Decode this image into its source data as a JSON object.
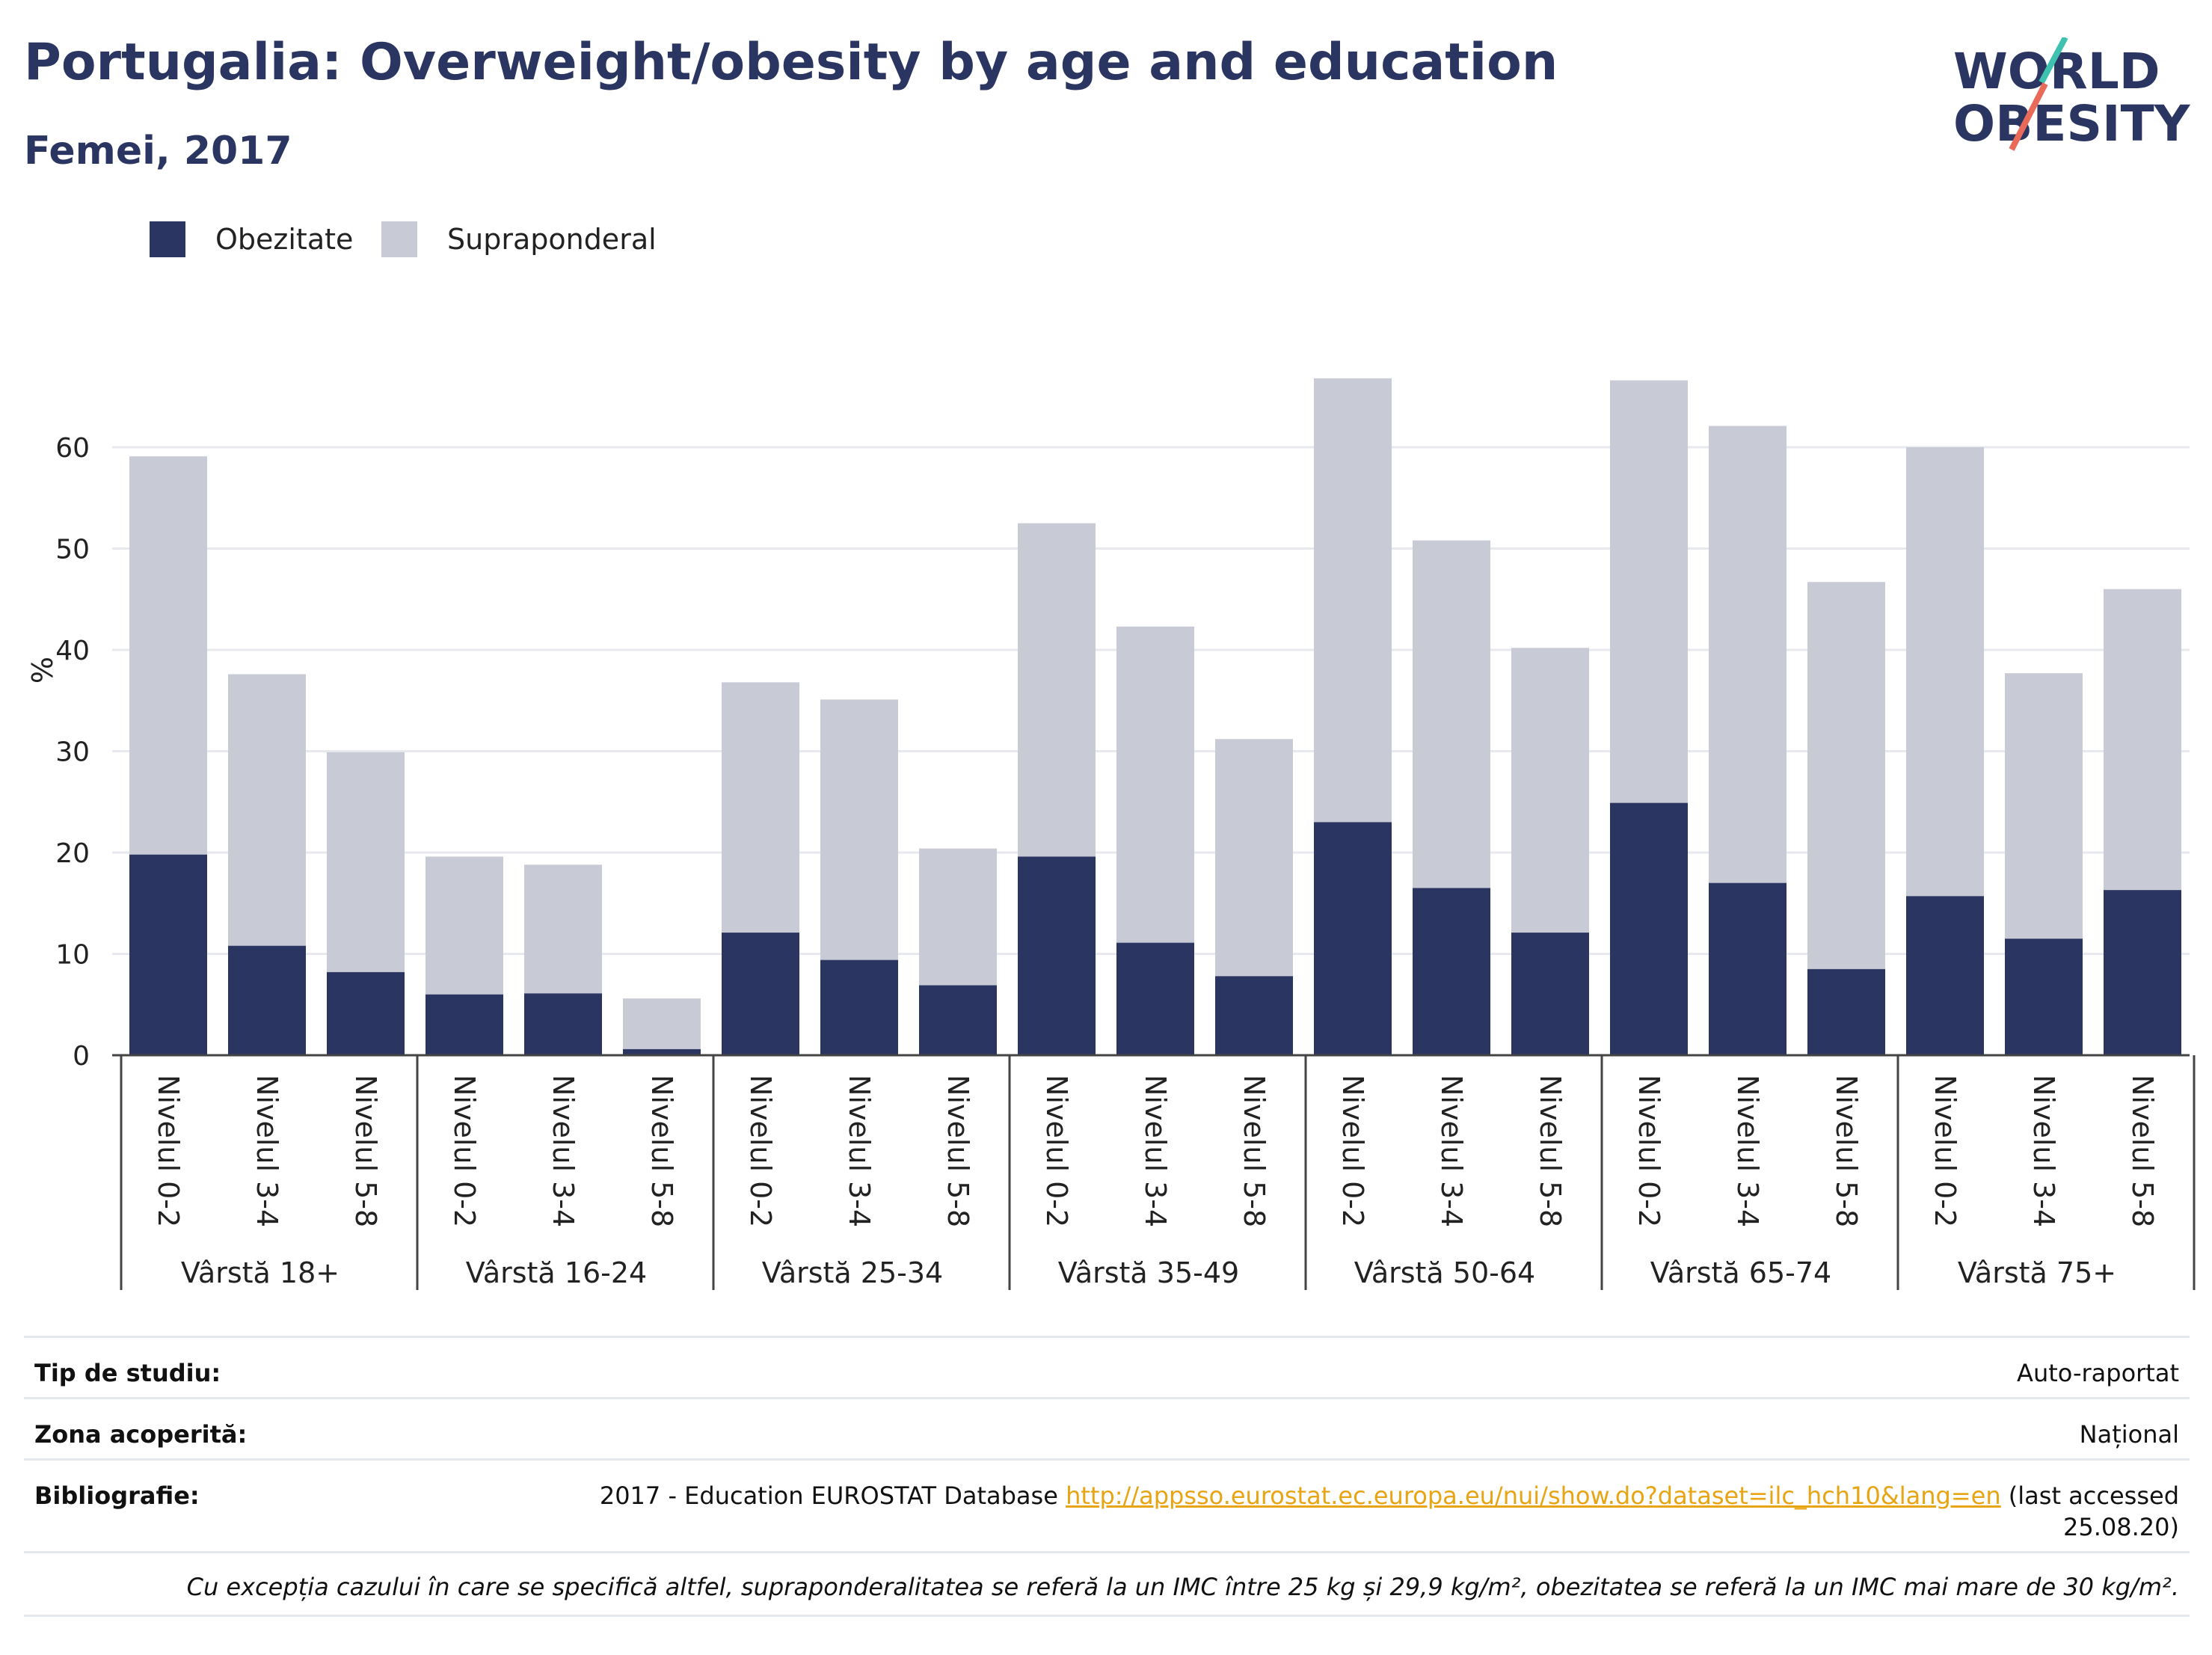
{
  "header": {
    "title": "Portugalia: Overweight/obesity by age and education",
    "subtitle": "Femei, 2017"
  },
  "logo": {
    "line1": "WORLD",
    "line2": "OBESITY"
  },
  "legend": [
    {
      "label": "Obezitate",
      "color": "#2b3561"
    },
    {
      "label": "Supraponderal",
      "color": "#c8cad6"
    }
  ],
  "chart_data": {
    "type": "bar",
    "stacked": true,
    "ylabel": "%",
    "ylim": [
      0,
      70
    ],
    "yticks": [
      0,
      10,
      20,
      30,
      40,
      50,
      60
    ],
    "grid": true,
    "legend_position": "top-left",
    "categories": [
      "Nivelul 0-2",
      "Nivelul 3-4",
      "Nivelul 5-8"
    ],
    "groups": [
      {
        "label": "Vârstă 18+",
        "obezitate": [
          19.8,
          10.8,
          8.2
        ],
        "supraponderal": [
          39.3,
          26.8,
          21.7
        ]
      },
      {
        "label": "Vârstă 16-24",
        "obezitate": [
          6.0,
          6.1,
          0.6
        ],
        "supraponderal": [
          13.6,
          12.7,
          5.0
        ]
      },
      {
        "label": "Vârstă 25-34",
        "obezitate": [
          12.1,
          9.4,
          6.9
        ],
        "supraponderal": [
          24.7,
          25.7,
          13.5
        ]
      },
      {
        "label": "Vârstă 35-49",
        "obezitate": [
          19.6,
          11.1,
          7.8
        ],
        "supraponderal": [
          32.9,
          31.2,
          23.4
        ]
      },
      {
        "label": "Vârstă 50-64",
        "obezitate": [
          23.0,
          16.5,
          12.1
        ],
        "supraponderal": [
          43.8,
          34.3,
          28.1
        ]
      },
      {
        "label": "Vârstă 65-74",
        "obezitate": [
          24.9,
          17.0,
          8.5
        ],
        "supraponderal": [
          41.7,
          45.1,
          38.2
        ]
      },
      {
        "label": "Vârstă 75+",
        "obezitate": [
          15.7,
          11.5,
          16.3
        ],
        "supraponderal": [
          44.3,
          26.2,
          29.7
        ]
      }
    ],
    "series_colors": {
      "obezitate": "#2b3561",
      "supraponderal": "#c8cad6"
    }
  },
  "info": {
    "study_type_label": "Tip de studiu:",
    "study_type_value": "Auto-raportat",
    "coverage_label": "Zona acoperită:",
    "coverage_value": "Național",
    "bibliography_label": "Bibliografie:",
    "bibliography_text": "2017 - Education EUROSTAT Database ",
    "bibliography_link": "http://appsso.eurostat.ec.europa.eu/nui/show.do?dataset=ilc_hch10&lang=en",
    "bibliography_suffix": " (last accessed 25.08.20)",
    "footnote": "Cu excepția cazului în care se specifică altfel, supraponderalitatea se referă la un IMC între 25 kg și 29,9 kg/m², obezitatea se referă la un IMC mai mare de 30 kg/m²."
  }
}
